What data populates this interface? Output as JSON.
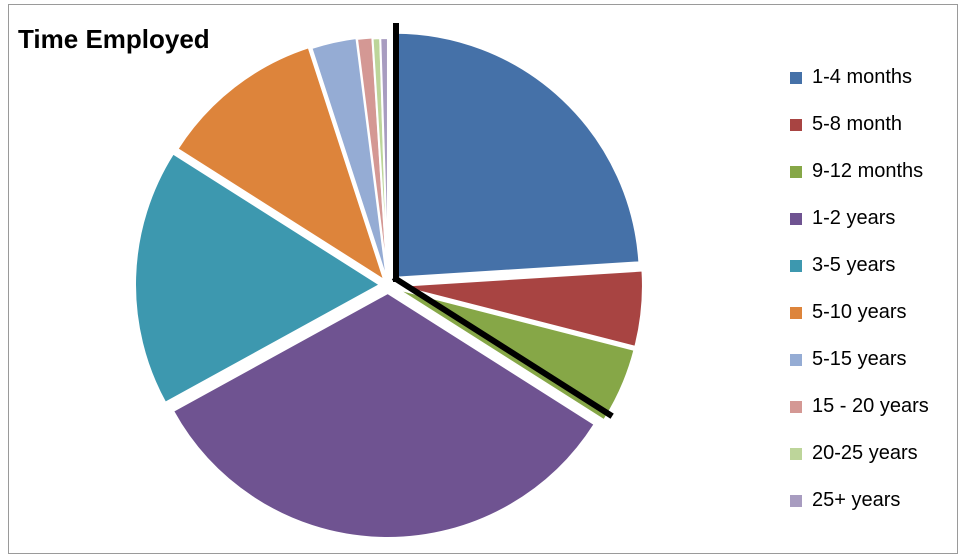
{
  "chart_data": {
    "type": "pie",
    "title": "Time Employed",
    "categories": [
      "1-4 months",
      "5-8 month",
      "9-12 months",
      "1-2 years",
      "3-5 years",
      "5-10 years",
      "5-15 years",
      "15 - 20 years",
      "20-25 years",
      "25+ years"
    ],
    "values": [
      24,
      5,
      5,
      33,
      17,
      11,
      3,
      1,
      0.5,
      0.5
    ],
    "colors": [
      "#4571a8",
      "#a84442",
      "#86a747",
      "#6f5391",
      "#3d98af",
      "#dd843b",
      "#95acd4",
      "#d49894",
      "#bdd59a",
      "#a89cc0"
    ],
    "legend_position": "right",
    "highlighted_categories": [
      "1-4 months",
      "5-8 month",
      "9-12 months"
    ],
    "highlight_color": "#000000"
  }
}
